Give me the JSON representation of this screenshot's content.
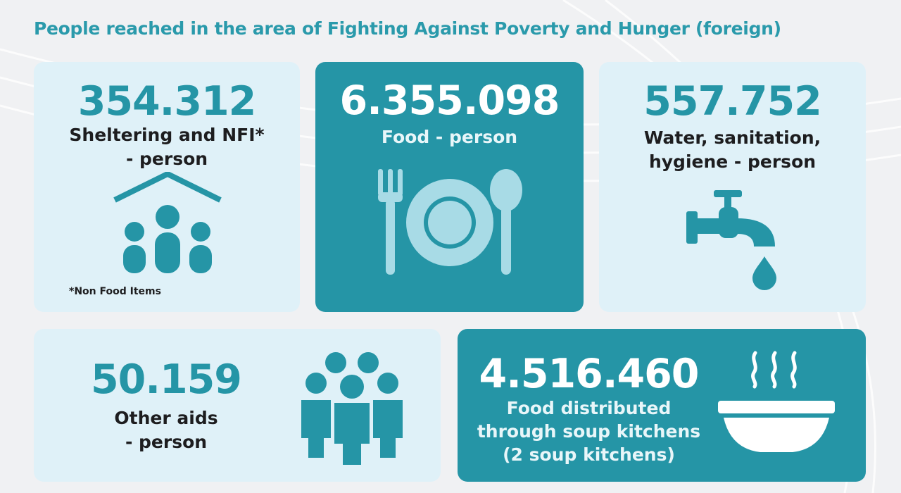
{
  "title": "People reached in the area of Fighting Against Poverty and Hunger (foreign)",
  "cards": [
    {
      "value": "354.312",
      "label": "Sheltering and NFI*\n- person",
      "note": "*Non Food Items",
      "icon": "shelter-people-icon"
    },
    {
      "value": "6.355.098",
      "label": "Food - person",
      "icon": "plate-fork-spoon-icon"
    },
    {
      "value": "557.752",
      "label": "Water, sanitation,\nhygiene - person",
      "icon": "water-tap-icon"
    },
    {
      "value": "50.159",
      "label": "Other aids\n- person",
      "icon": "people-group-icon"
    },
    {
      "value": "4.516.460",
      "label": "Food distributed\nthrough soup kitchens\n(2 soup kitchens)",
      "icon": "soup-bowl-icon"
    }
  ],
  "colors": {
    "accent": "#2595a6",
    "light_card": "#dff1f8",
    "title": "#2a9aab"
  }
}
